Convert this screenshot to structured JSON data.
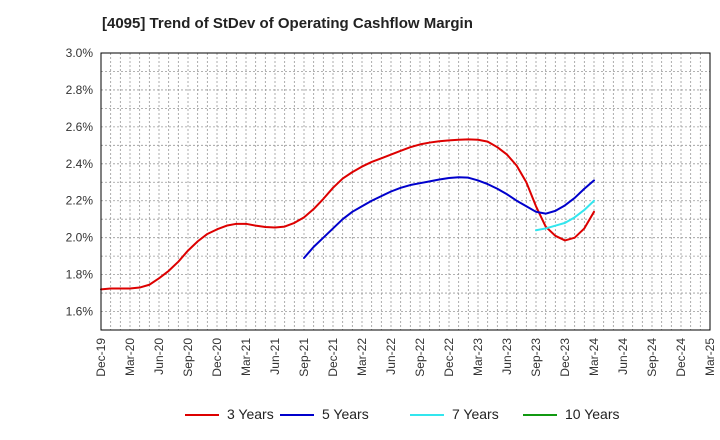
{
  "title": "[4095]  Trend of StDev of Operating Cashflow Margin",
  "chart_data": {
    "type": "line",
    "title": "[4095]  Trend of StDev of Operating Cashflow Margin",
    "xlabel": "",
    "ylabel": "",
    "x_ticks": [
      "Dec-19",
      "Mar-20",
      "Jun-20",
      "Sep-20",
      "Dec-20",
      "Mar-21",
      "Jun-21",
      "Sep-21",
      "Dec-21",
      "Mar-22",
      "Jun-22",
      "Sep-22",
      "Dec-22",
      "Mar-23",
      "Jun-23",
      "Sep-23",
      "Dec-23",
      "Mar-24",
      "Jun-24",
      "Sep-24",
      "Dec-24",
      "Mar-25"
    ],
    "y_ticks": [
      "1.6%",
      "1.8%",
      "2.0%",
      "2.2%",
      "2.4%",
      "2.6%",
      "2.8%",
      "3.0%"
    ],
    "ylim": [
      1.5,
      3.0
    ],
    "y_unit": "%",
    "grid": true,
    "legend_position": "bottom",
    "series": [
      {
        "name": "3 Years",
        "color": "#dd0000",
        "x": [
          "Dec-19",
          "Jan-20",
          "Feb-20",
          "Mar-20",
          "Apr-20",
          "May-20",
          "Jun-20",
          "Jul-20",
          "Aug-20",
          "Sep-20",
          "Oct-20",
          "Nov-20",
          "Dec-20",
          "Jan-21",
          "Feb-21",
          "Mar-21",
          "Apr-21",
          "May-21",
          "Jun-21",
          "Jul-21",
          "Aug-21",
          "Sep-21",
          "Oct-21",
          "Nov-21",
          "Dec-21",
          "Jan-22",
          "Feb-22",
          "Mar-22",
          "Apr-22",
          "May-22",
          "Jun-22",
          "Jul-22",
          "Aug-22",
          "Sep-22",
          "Oct-22",
          "Nov-22",
          "Dec-22",
          "Jan-23",
          "Feb-23",
          "Mar-23",
          "Apr-23",
          "May-23",
          "Jun-23",
          "Jul-23",
          "Aug-23",
          "Sep-23",
          "Oct-23",
          "Nov-23",
          "Dec-23",
          "Jan-24",
          "Feb-24",
          "Mar-24"
        ],
        "values": [
          1.72,
          1.725,
          1.725,
          1.725,
          1.73,
          1.745,
          1.78,
          1.82,
          1.87,
          1.93,
          1.98,
          2.02,
          2.045,
          2.065,
          2.075,
          2.075,
          2.065,
          2.058,
          2.055,
          2.06,
          2.08,
          2.11,
          2.155,
          2.21,
          2.27,
          2.32,
          2.355,
          2.385,
          2.41,
          2.43,
          2.45,
          2.47,
          2.49,
          2.505,
          2.515,
          2.522,
          2.527,
          2.53,
          2.532,
          2.53,
          2.52,
          2.49,
          2.45,
          2.39,
          2.3,
          2.17,
          2.06,
          2.01,
          1.985,
          2.0,
          2.05,
          2.14
        ]
      },
      {
        "name": "5 Years",
        "color": "#0000cc",
        "x": [
          "Sep-21",
          "Oct-21",
          "Nov-21",
          "Dec-21",
          "Jan-22",
          "Feb-22",
          "Mar-22",
          "Apr-22",
          "May-22",
          "Jun-22",
          "Jul-22",
          "Aug-22",
          "Sep-22",
          "Oct-22",
          "Nov-22",
          "Dec-22",
          "Jan-23",
          "Feb-23",
          "Mar-23",
          "Apr-23",
          "May-23",
          "Jun-23",
          "Jul-23",
          "Aug-23",
          "Sep-23",
          "Oct-23",
          "Nov-23",
          "Dec-23",
          "Jan-24",
          "Feb-24",
          "Mar-24"
        ],
        "values": [
          1.89,
          1.95,
          2.0,
          2.05,
          2.1,
          2.14,
          2.17,
          2.2,
          2.225,
          2.25,
          2.27,
          2.285,
          2.295,
          2.305,
          2.315,
          2.323,
          2.327,
          2.325,
          2.31,
          2.29,
          2.265,
          2.235,
          2.2,
          2.17,
          2.14,
          2.13,
          2.145,
          2.175,
          2.215,
          2.265,
          2.31
        ]
      },
      {
        "name": "7 Years",
        "color": "#33e6ee",
        "x": [
          "Sep-23",
          "Oct-23",
          "Nov-23",
          "Dec-23",
          "Jan-24",
          "Feb-24",
          "Mar-24"
        ],
        "values": [
          2.04,
          2.05,
          2.065,
          2.08,
          2.11,
          2.15,
          2.2
        ]
      },
      {
        "name": "10 Years",
        "color": "#119911",
        "x": [],
        "values": []
      }
    ]
  }
}
